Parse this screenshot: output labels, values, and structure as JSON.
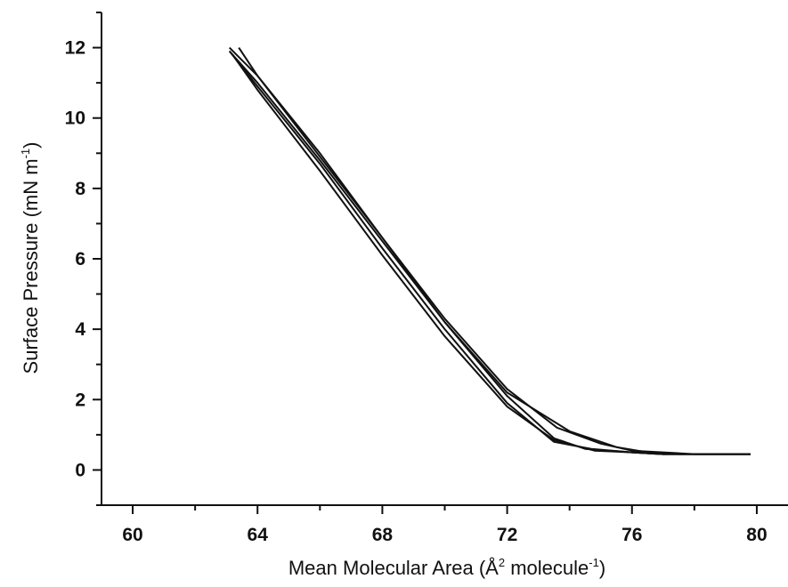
{
  "chart_data": {
    "type": "line",
    "xlabel": {
      "main": "Mean Molecular Area (Å",
      "sup1": "2",
      "mid": " molecule",
      "sup2": "-1",
      "end": ")"
    },
    "ylabel": {
      "main": "Surface Pressure (mN m",
      "sup": "-1",
      "end": ")"
    },
    "xlim": [
      59,
      81
    ],
    "ylim": [
      -1,
      13
    ],
    "x_ticks": [
      "60",
      "64",
      "68",
      "72",
      "76",
      "80"
    ],
    "y_ticks": [
      "0",
      "2",
      "4",
      "6",
      "8",
      "10",
      "12"
    ],
    "grid": false,
    "legend": "none",
    "series": [
      {
        "x": [
          63.1,
          64,
          66,
          68,
          70,
          72,
          73.5,
          74.5,
          76,
          77,
          78,
          79.8
        ],
        "y": [
          12.0,
          11.2,
          9.0,
          6.6,
          4.2,
          2.1,
          0.9,
          0.6,
          0.5,
          0.45,
          0.45,
          0.45
        ]
      },
      {
        "x": [
          63.1,
          64,
          66,
          68,
          70,
          72,
          73.5,
          74.7,
          76,
          77,
          78,
          79.8
        ],
        "y": [
          11.9,
          10.9,
          8.7,
          6.3,
          4.0,
          1.9,
          0.8,
          0.6,
          0.5,
          0.45,
          0.45,
          0.45
        ]
      },
      {
        "x": [
          63.2,
          64,
          66,
          68,
          70,
          72,
          73.5,
          74.8,
          76,
          77,
          78,
          79.8
        ],
        "y": [
          11.8,
          10.8,
          8.5,
          6.1,
          3.8,
          1.8,
          0.85,
          0.55,
          0.5,
          0.45,
          0.45,
          0.45
        ]
      },
      {
        "x": [
          63.4,
          64,
          66,
          68,
          70,
          72,
          73.6,
          75.0,
          76,
          77,
          78,
          79.8
        ],
        "y": [
          12.0,
          11.2,
          8.9,
          6.6,
          4.3,
          2.3,
          1.2,
          0.75,
          0.55,
          0.5,
          0.45,
          0.45
        ]
      },
      {
        "x": [
          63.1,
          64,
          66,
          68,
          70,
          72,
          74,
          75.5,
          76.5,
          77.5,
          78.5,
          79.8
        ],
        "y": [
          11.9,
          11.0,
          8.8,
          6.5,
          4.2,
          2.2,
          1.1,
          0.65,
          0.5,
          0.45,
          0.45,
          0.45
        ]
      }
    ]
  }
}
